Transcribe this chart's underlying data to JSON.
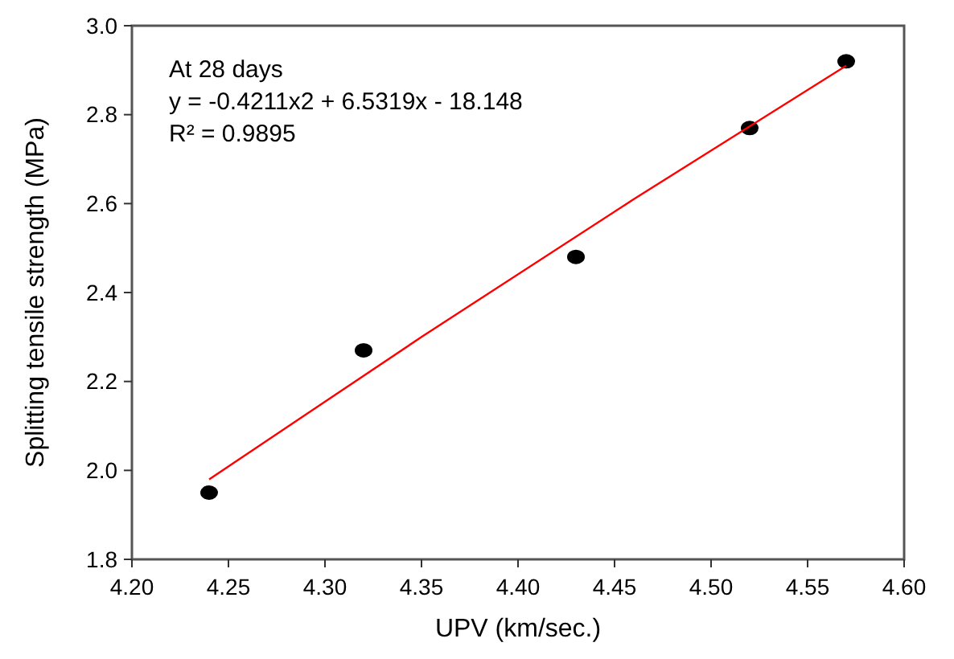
{
  "chart_data": {
    "type": "scatter",
    "xlabel": "UPV (km/sec.)",
    "ylabel": "Splitting tensile strength (MPa)",
    "annotations": [
      "At 28 days",
      "y = -0.4211x2 + 6.5319x - 18.148",
      "R² = 0.9895"
    ],
    "xlim": [
      4.2,
      4.6
    ],
    "xticks": [
      {
        "value": 4.2,
        "label": "4.20"
      },
      4.25,
      {
        "value": 4.3,
        "label": "4.30"
      },
      4.35,
      {
        "value": 4.4,
        "label": "4.40"
      },
      4.45,
      {
        "value": 4.5,
        "label": "4.50"
      },
      4.55,
      {
        "value": 4.6,
        "label": "4.60"
      }
    ],
    "ylim": [
      1.8,
      3.0
    ],
    "yticks": [
      1.8,
      {
        "value": 2,
        "label": "2.0"
      },
      2.2,
      2.4,
      2.6,
      2.8,
      {
        "value": 3,
        "label": "3.0"
      }
    ],
    "grid": false,
    "marker": "circle",
    "series": [
      {
        "color": "#000000",
        "x": [
          4.24,
          4.32,
          4.43,
          4.52,
          4.57
        ],
        "values": [
          1.95,
          2.27,
          2.48,
          2.77,
          2.92
        ]
      },
      {
        "type": "line",
        "color": "#ff0000",
        "line_style": "solid",
        "marker": "none",
        "x": [
          4.24,
          4.35,
          4.46,
          4.57
        ],
        "values": [
          1.98,
          2.3,
          2.61,
          2.91
        ]
      }
    ]
  }
}
